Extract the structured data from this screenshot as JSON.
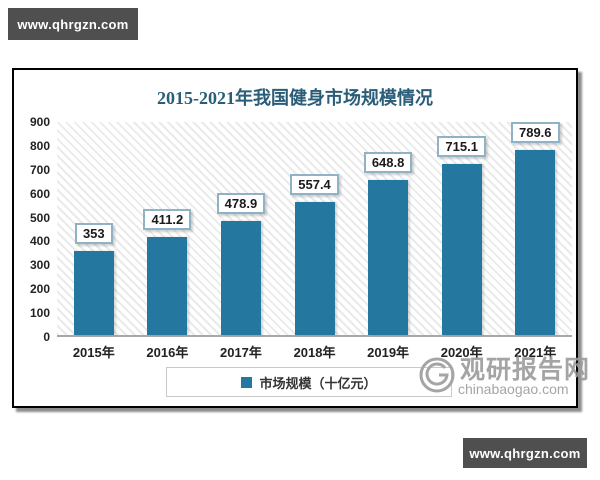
{
  "watermarks": {
    "top_left": "www.qhrgzn.com",
    "bottom_right": "www.qhrgzn.com",
    "site_name": "观研报告网",
    "site_url": "chinabaogao.com"
  },
  "chart_data": {
    "type": "bar",
    "title": "2015-2021年我国健身市场规模情况",
    "categories": [
      "2015年",
      "2016年",
      "2017年",
      "2018年",
      "2019年",
      "2020年",
      "2021年"
    ],
    "values": [
      353,
      411.2,
      478.9,
      557.4,
      648.8,
      715.1,
      789.6
    ],
    "value_labels": [
      "353",
      "411.2",
      "478.9",
      "557.4",
      "648.8",
      "715.1",
      "789.6"
    ],
    "legend": "市场规模（十亿元）",
    "xlabel": "",
    "ylabel": "",
    "ylim": [
      0,
      900
    ],
    "yticks": [
      0,
      100,
      200,
      300,
      400,
      500,
      600,
      700,
      800,
      900
    ],
    "grid": false,
    "legend_position": "bottom",
    "bar_color": "#24789f",
    "plot_background": "diagonal-hatch"
  },
  "colors": {
    "bar": "#24789f",
    "title": "#2a5d78",
    "value_box_border": "#8fb2c4",
    "watermark_bg": "#4f4f4f",
    "site_watermark_text": "#9b9b9b",
    "frame_border": "#000000"
  }
}
